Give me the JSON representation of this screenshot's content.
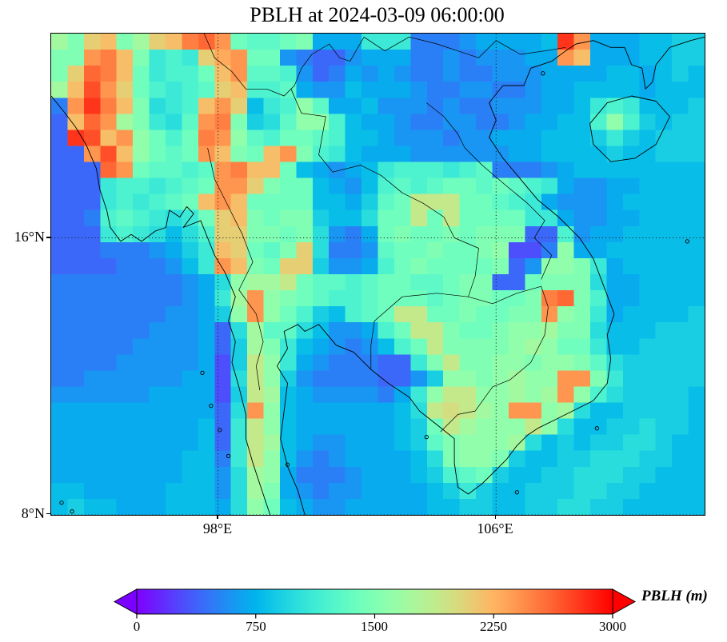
{
  "figure": {
    "title": "PBLH at 2024-03-09 06:00:00"
  },
  "axes": {
    "x_ticks": [
      {
        "label": "98°E",
        "lon": 98
      },
      {
        "label": "106°E",
        "lon": 106
      }
    ],
    "y_ticks": [
      {
        "label": "16°N",
        "lat": 16
      },
      {
        "label": "8°N",
        "lat": 8
      }
    ],
    "extent": {
      "lon_min": 93.2,
      "lon_max": 112.0,
      "lat_min": 8.0,
      "lat_max": 21.9
    }
  },
  "colorbar": {
    "label": "PBLH (m)",
    "ticks": [
      "0",
      "750",
      "1500",
      "2250",
      "3000"
    ],
    "tick_values": [
      0,
      750,
      1500,
      2250,
      3000
    ],
    "vmin": 0,
    "vmax": 3000,
    "colormap": "rainbow",
    "extend": "both",
    "arrow_low_color": "#7a00ff",
    "arrow_high_color": "#ff0000"
  },
  "chart_data": {
    "type": "heatmap",
    "title": "PBLH at 2024-03-09 06:00:00",
    "variable": "PBLH",
    "units": "m",
    "colormap": "rainbow",
    "vmin": 0,
    "vmax": 3000,
    "lon_range": [
      93.2,
      112.0
    ],
    "lat_range": [
      8.0,
      21.9
    ],
    "gridlines": {
      "lons": [
        98,
        106
      ],
      "lats": [
        16,
        8
      ],
      "style": "dotted"
    },
    "grid_encoding": "each char = PBLH in hundreds of metres (base36: 0-9,a-z), rows listed north to south, 40 columns west to east",
    "ncols": 40,
    "nrows": 30,
    "rows": [
      "hflmfhlmpqoeddef777bbb555677778so7778899",
      "ffopmfbcblnoee65446777556566677om7778899",
      "flqpmebccemoddc6457676556556667777887898",
      "hmrolecbcdlmccd7668777655665567788887888",
      "5ospmfabcmol8bcgd7786665655666778bcb8889",
      "4mqohfbadopf9adggc877655665567788cgc9899",
      "4srmogecepogdceedc8876665667778889b98999",
      "44ormgedeomfemofcb8777666666778888988999",
      "444qoeddcdopmme87678bcccbcd5556788888888",
      "444bccbcdeoolfee8768cdcdeededcb766778888",
      "444bcbcdemomeeee8879dejjjeedcb7666788888",
      "445cdcbabelmfeff988aeejejeeeebb766778888",
      "444bcba8acllffefa657efeefefff44c67788888",
      "444555679bmledfla556deefeefg335g77888888",
      "444455568bomfell9667cefeeeef46ggfb788888",
      "5555555567aghhjeddcdeeddeff44efffa778888",
      "5555555567bhogfedccdeeedeffeefpqfc778888",
      "55555556679gogec98cdejjeefeeffogfb788889",
      "55555566674ahdda8667cejjfeefgghffa888999",
      "555556666749hfb876568cejffffghgeeb889999",
      "555566666739jgb7655544bfjffggfggfda99999",
      "55666666773ajg9655554469ggfghggoofb99999",
      "666666777739jh87666657bgjjgghghogca99998",
      "77777777774aog87777778ajkjhgoogha8899998",
      "77777777784bjg877777789ejhgggjga8899a998",
      "77777777784bjh876677789dfgggha89899aa988",
      "77777777885bjg865677778afggf98899aaa9988",
      "77777777886ahg7555677789cde98899aaa99888",
      "88777778886ahf76566777789b988999aa998888",
      "89887778887age87667777788998899aa9988888"
    ],
    "map_features": {
      "coastlines": [
        [
          [
            93.2,
            20.1
          ],
          [
            93.6,
            19.6
          ],
          [
            93.9,
            19.2
          ],
          [
            94.2,
            18.7
          ],
          [
            94.5,
            18.0
          ],
          [
            94.6,
            17.4
          ],
          [
            94.8,
            16.8
          ],
          [
            94.9,
            16.3
          ],
          [
            95.2,
            15.9
          ],
          [
            95.5,
            16.1
          ],
          [
            95.8,
            15.9
          ],
          [
            96.2,
            16.2
          ],
          [
            96.5,
            16.3
          ],
          [
            96.6,
            16.8
          ],
          [
            96.9,
            16.6
          ],
          [
            97.1,
            16.9
          ],
          [
            97.3,
            16.7
          ],
          [
            97.0,
            16.3
          ],
          [
            97.5,
            16.5
          ],
          [
            97.7,
            16.0
          ],
          [
            97.9,
            15.5
          ],
          [
            98.2,
            15.0
          ],
          [
            98.5,
            14.3
          ],
          [
            98.3,
            13.6
          ],
          [
            98.5,
            13.0
          ],
          [
            98.4,
            12.4
          ],
          [
            98.6,
            11.7
          ],
          [
            98.8,
            10.9
          ],
          [
            98.8,
            10.2
          ],
          [
            99.0,
            9.5
          ],
          [
            99.2,
            8.9
          ],
          [
            99.4,
            8.3
          ],
          [
            99.5,
            8.0
          ]
        ],
        [
          [
            100.5,
            8.0
          ],
          [
            100.3,
            8.7
          ],
          [
            100.0,
            9.4
          ],
          [
            99.8,
            10.2
          ],
          [
            99.9,
            11.0
          ],
          [
            100.0,
            11.8
          ],
          [
            99.7,
            12.3
          ],
          [
            100.0,
            12.8
          ],
          [
            99.9,
            13.3
          ],
          [
            100.3,
            13.5
          ],
          [
            100.5,
            13.3
          ],
          [
            100.9,
            13.5
          ],
          [
            101.4,
            12.9
          ],
          [
            101.9,
            12.7
          ],
          [
            102.4,
            12.2
          ],
          [
            102.9,
            11.8
          ],
          [
            103.5,
            11.4
          ],
          [
            103.8,
            11.0
          ],
          [
            104.3,
            10.6
          ],
          [
            104.8,
            10.2
          ],
          [
            104.8,
            9.5
          ],
          [
            104.9,
            8.8
          ],
          [
            105.2,
            8.6
          ],
          [
            105.6,
            8.9
          ],
          [
            106.0,
            9.3
          ],
          [
            106.3,
            9.6
          ],
          [
            106.6,
            10.0
          ],
          [
            106.9,
            10.3
          ],
          [
            107.2,
            10.5
          ],
          [
            107.6,
            10.7
          ],
          [
            108.2,
            11.0
          ],
          [
            108.8,
            11.3
          ],
          [
            109.2,
            11.8
          ],
          [
            109.3,
            12.5
          ],
          [
            109.2,
            13.2
          ],
          [
            109.4,
            13.8
          ],
          [
            109.1,
            14.6
          ],
          [
            108.8,
            15.4
          ],
          [
            108.4,
            16.0
          ],
          [
            107.8,
            16.6
          ],
          [
            107.2,
            17.1
          ],
          [
            106.7,
            17.7
          ],
          [
            106.2,
            18.3
          ],
          [
            105.8,
            18.9
          ],
          [
            106.0,
            19.4
          ],
          [
            105.8,
            19.9
          ],
          [
            106.2,
            20.4
          ],
          [
            106.8,
            20.4
          ],
          [
            107.0,
            20.9
          ],
          [
            107.6,
            21.1
          ],
          [
            108.0,
            21.4
          ],
          [
            108.3,
            21.6
          ]
        ],
        [
          [
            108.3,
            21.6
          ],
          [
            108.8,
            21.7
          ],
          [
            109.3,
            21.5
          ],
          [
            109.7,
            21.5
          ],
          [
            109.9,
            21.0
          ],
          [
            110.2,
            20.9
          ],
          [
            110.3,
            20.3
          ],
          [
            110.5,
            20.5
          ],
          [
            110.6,
            21.0
          ],
          [
            111.0,
            21.5
          ],
          [
            111.6,
            21.7
          ],
          [
            112.0,
            21.8
          ]
        ],
        [
          [
            108.7,
            19.3
          ],
          [
            109.2,
            19.9
          ],
          [
            109.9,
            20.1
          ],
          [
            110.6,
            19.95
          ],
          [
            111.0,
            19.5
          ],
          [
            110.6,
            18.7
          ],
          [
            110.0,
            18.3
          ],
          [
            109.3,
            18.2
          ],
          [
            108.8,
            18.7
          ],
          [
            108.7,
            19.3
          ]
        ]
      ],
      "borders": [
        [
          [
            97.7,
            18.6
          ],
          [
            97.9,
            17.7
          ],
          [
            98.3,
            16.9
          ],
          [
            98.7,
            16.1
          ],
          [
            99.0,
            15.3
          ],
          [
            98.6,
            14.5
          ],
          [
            99.1,
            13.8
          ],
          [
            99.3,
            13.0
          ],
          [
            99.1,
            12.3
          ],
          [
            99.2,
            11.6
          ]
        ],
        [
          [
            97.6,
            21.9
          ],
          [
            97.9,
            21.2
          ],
          [
            98.4,
            20.8
          ],
          [
            98.8,
            20.3
          ],
          [
            99.4,
            20.3
          ],
          [
            99.9,
            20.1
          ],
          [
            100.2,
            20.4
          ],
          [
            100.4,
            20.9
          ],
          [
            100.7,
            21.3
          ],
          [
            101.2,
            21.6
          ],
          [
            101.5,
            21.2
          ],
          [
            101.8,
            21.1
          ],
          [
            102.2,
            21.8
          ]
        ],
        [
          [
            102.2,
            21.8
          ],
          [
            102.8,
            21.4
          ],
          [
            103.5,
            21.8
          ],
          [
            104.3,
            21.6
          ],
          [
            104.9,
            21.4
          ],
          [
            105.5,
            21.2
          ],
          [
            106.0,
            21.7
          ],
          [
            106.7,
            21.3
          ],
          [
            107.4,
            21.4
          ],
          [
            108.0,
            21.5
          ]
        ],
        [
          [
            100.1,
            20.3
          ],
          [
            100.4,
            19.6
          ],
          [
            101.1,
            19.5
          ],
          [
            100.9,
            18.4
          ],
          [
            101.3,
            17.9
          ],
          [
            102.1,
            18.1
          ],
          [
            102.7,
            17.8
          ],
          [
            103.3,
            17.3
          ],
          [
            103.9,
            17.0
          ],
          [
            104.5,
            16.6
          ],
          [
            104.8,
            16.0
          ],
          [
            105.5,
            15.7
          ],
          [
            105.4,
            14.9
          ],
          [
            105.2,
            14.3
          ]
        ],
        [
          [
            105.2,
            14.3
          ],
          [
            104.3,
            14.4
          ],
          [
            103.3,
            14.3
          ],
          [
            102.5,
            13.6
          ],
          [
            102.4,
            12.9
          ],
          [
            102.4,
            12.2
          ]
        ],
        [
          [
            104.0,
            19.9
          ],
          [
            104.5,
            19.5
          ],
          [
            104.9,
            19.0
          ],
          [
            105.1,
            18.6
          ],
          [
            105.6,
            18.1
          ],
          [
            106.3,
            17.5
          ],
          [
            106.9,
            17.0
          ],
          [
            107.4,
            16.5
          ],
          [
            107.1,
            16.0
          ],
          [
            107.6,
            15.5
          ],
          [
            107.3,
            14.8
          ]
        ],
        [
          [
            105.2,
            14.3
          ],
          [
            105.9,
            14.1
          ],
          [
            106.6,
            14.4
          ],
          [
            107.3,
            14.6
          ],
          [
            107.5,
            14.0
          ],
          [
            107.4,
            13.2
          ],
          [
            107.0,
            12.4
          ],
          [
            106.4,
            11.9
          ],
          [
            105.9,
            11.7
          ],
          [
            105.4,
            11.0
          ],
          [
            104.9,
            10.9
          ],
          [
            104.4,
            10.4
          ]
        ]
      ],
      "islands": [
        [
          93.5,
          8.35
        ],
        [
          93.8,
          8.1
        ],
        [
          97.55,
          12.1
        ],
        [
          97.8,
          11.15
        ],
        [
          98.05,
          10.45
        ],
        [
          98.3,
          9.7
        ],
        [
          98.35,
          7.95
        ],
        [
          100.0,
          9.45
        ],
        [
          104.0,
          10.25
        ],
        [
          106.6,
          8.65
        ],
        [
          107.35,
          20.75
        ],
        [
          111.5,
          15.9
        ],
        [
          108.9,
          10.5
        ]
      ]
    }
  }
}
